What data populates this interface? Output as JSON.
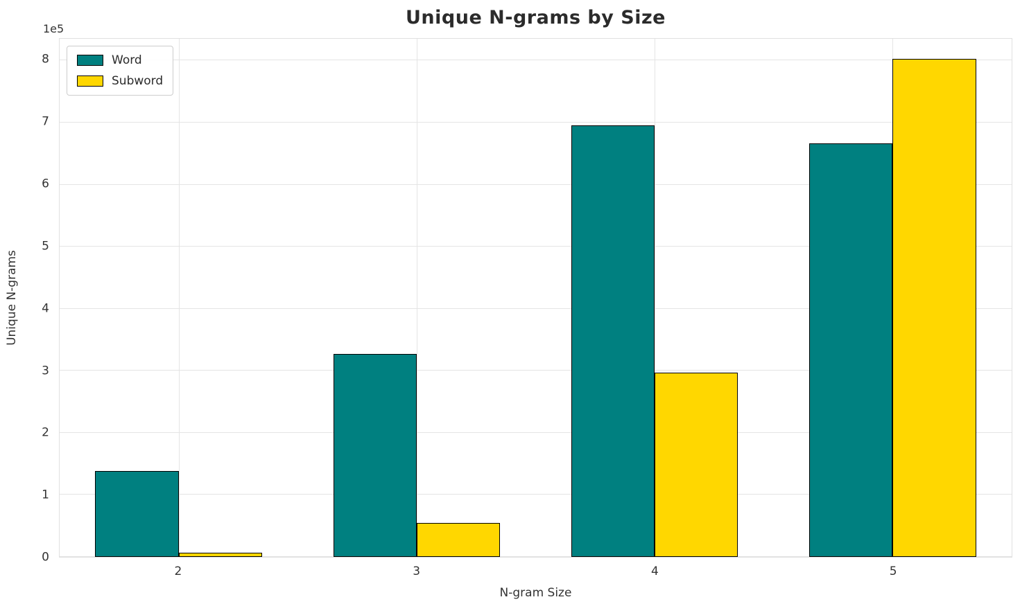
{
  "chart_data": {
    "type": "bar",
    "title": "Unique N-grams by Size",
    "xlabel": "N-gram Size",
    "ylabel": "Unique N-grams",
    "offset_text": "1e5",
    "categories": [
      "2",
      "3",
      "4",
      "5"
    ],
    "series": [
      {
        "name": "Word",
        "color": "#008080",
        "values": [
          138000,
          327000,
          695000,
          667000
        ]
      },
      {
        "name": "Subword",
        "color": "#FFD700",
        "values": [
          7000,
          55000,
          297000,
          803000
        ]
      }
    ],
    "y_ticks": [
      0,
      1,
      2,
      3,
      4,
      5,
      6,
      7,
      8
    ],
    "y_scale": 100000,
    "ylim": [
      0,
      835000
    ],
    "bar_edge_color": "#000000",
    "grid": true,
    "legend_position": "upper left"
  }
}
